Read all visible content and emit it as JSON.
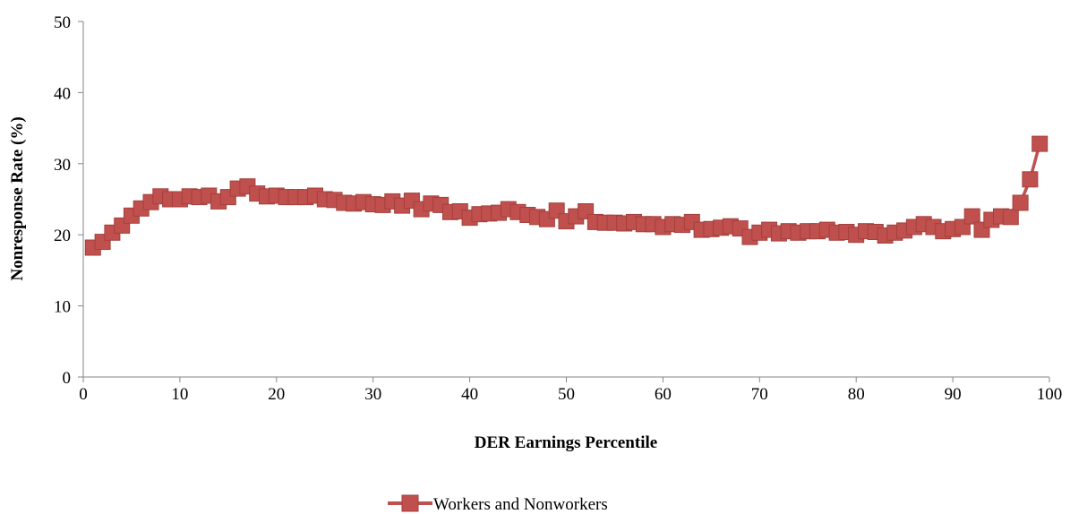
{
  "chart_data": {
    "type": "line",
    "title": "",
    "xlabel": "DER Earnings Percentile",
    "ylabel": "Nonresponse Rate (%)",
    "xlim": [
      0,
      100
    ],
    "ylim": [
      0,
      50
    ],
    "xticks": [
      "0",
      "10",
      "20",
      "30",
      "40",
      "50",
      "60",
      "70",
      "80",
      "90",
      "100"
    ],
    "yticks": [
      "0",
      "10",
      "20",
      "30",
      "40",
      "50"
    ],
    "grid": false,
    "legend_position": "bottom",
    "series": [
      {
        "name": "Workers and Nonworkers",
        "color": "#c0504d",
        "marker": "square",
        "x": [
          1,
          2,
          3,
          4,
          5,
          6,
          7,
          8,
          9,
          10,
          11,
          12,
          13,
          14,
          15,
          16,
          17,
          18,
          19,
          20,
          21,
          22,
          23,
          24,
          25,
          26,
          27,
          28,
          29,
          30,
          31,
          32,
          33,
          34,
          35,
          36,
          37,
          38,
          39,
          40,
          41,
          42,
          43,
          44,
          45,
          46,
          47,
          48,
          49,
          50,
          51,
          52,
          53,
          54,
          55,
          56,
          57,
          58,
          59,
          60,
          61,
          62,
          63,
          64,
          65,
          66,
          67,
          68,
          69,
          70,
          71,
          72,
          73,
          74,
          75,
          76,
          77,
          78,
          79,
          80,
          81,
          82,
          83,
          84,
          85,
          86,
          87,
          88,
          89,
          90,
          91,
          92,
          93,
          94,
          95,
          96,
          97,
          98,
          99
        ],
        "y": [
          18.2,
          19.0,
          20.3,
          21.3,
          22.7,
          23.7,
          24.6,
          25.4,
          25.0,
          25.0,
          25.4,
          25.3,
          25.5,
          24.7,
          25.3,
          26.5,
          26.8,
          25.8,
          25.4,
          25.5,
          25.3,
          25.3,
          25.3,
          25.5,
          25.0,
          24.9,
          24.5,
          24.4,
          24.6,
          24.3,
          24.2,
          24.7,
          24.1,
          24.8,
          23.6,
          24.4,
          24.2,
          23.2,
          23.3,
          22.4,
          22.9,
          23.0,
          23.1,
          23.6,
          23.2,
          22.8,
          22.5,
          22.2,
          23.4,
          21.9,
          22.6,
          23.3,
          21.8,
          21.7,
          21.7,
          21.6,
          21.8,
          21.5,
          21.5,
          21.1,
          21.5,
          21.4,
          21.8,
          20.7,
          20.8,
          21.0,
          21.2,
          20.9,
          19.7,
          20.3,
          20.7,
          20.2,
          20.5,
          20.3,
          20.5,
          20.5,
          20.7,
          20.3,
          20.4,
          20.0,
          20.5,
          20.4,
          19.9,
          20.3,
          20.6,
          21.1,
          21.5,
          21.1,
          20.5,
          20.8,
          21.1,
          22.6,
          20.7,
          22.1,
          22.6,
          22.5,
          24.5,
          27.8,
          32.8
        ]
      }
    ]
  }
}
